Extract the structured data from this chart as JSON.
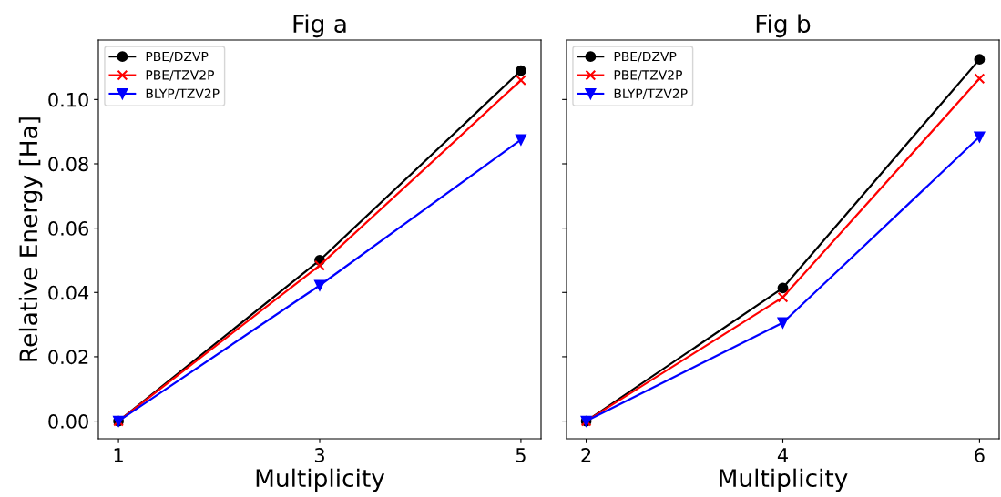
{
  "chart_data": [
    {
      "type": "line",
      "title": "Fig a",
      "xlabel": "Multiplicity",
      "ylabel": "Relative Energy [Ha]",
      "x": [
        1,
        3,
        5
      ],
      "xlim": [
        0.8,
        5.2
      ],
      "xticks": [
        1,
        3,
        5
      ],
      "ylim": [
        -0.0055,
        0.1185
      ],
      "yticks": [
        {
          "value": 0,
          "label": "0.00"
        },
        {
          "value": 0.02,
          "label": "0.02"
        },
        {
          "value": 0.04,
          "label": "0.04"
        },
        {
          "value": 0.06,
          "label": "0.06"
        },
        {
          "value": 0.08,
          "label": "0.08"
        },
        {
          "value": 0.1,
          "label": "0.10"
        }
      ],
      "legend": "top left",
      "grid": false,
      "series": [
        {
          "name": "PBE/DZVP",
          "color": "#000000",
          "marker": "circle",
          "values": [
            0,
            0.05,
            0.109
          ]
        },
        {
          "name": "PBE/TZV2P",
          "color": "#ff0000",
          "marker": "cross",
          "values": [
            0,
            0.0484,
            0.106
          ]
        },
        {
          "name": "BLYP/TZV2P",
          "color": "#0000ff",
          "marker": "triangle",
          "values": [
            0,
            0.0422,
            0.0875
          ]
        }
      ]
    },
    {
      "type": "line",
      "title": "Fig b",
      "xlabel": "Multiplicity",
      "x": [
        2,
        4,
        6
      ],
      "xlim": [
        1.8,
        6.2
      ],
      "xticks": [
        2,
        4,
        6
      ],
      "ylim": [
        -0.0055,
        0.1185
      ],
      "yticks": [
        {
          "value": 0,
          "label": null
        },
        {
          "value": 0.02,
          "label": null
        },
        {
          "value": 0.04,
          "label": null
        },
        {
          "value": 0.06,
          "label": null
        },
        {
          "value": 0.08,
          "label": null
        },
        {
          "value": 0.1,
          "label": null
        }
      ],
      "tick_labels": "x",
      "legend": "top left",
      "grid": false,
      "series": [
        {
          "name": "PBE/DZVP",
          "color": "#000000",
          "marker": "circle",
          "values": [
            0,
            0.0414,
            0.1125
          ]
        },
        {
          "name": "PBE/TZV2P",
          "color": "#ff0000",
          "marker": "cross",
          "values": [
            0,
            0.0385,
            0.1065
          ]
        },
        {
          "name": "BLYP/TZV2P",
          "color": "#0000ff",
          "marker": "triangle",
          "values": [
            0,
            0.0306,
            0.0884
          ]
        }
      ]
    }
  ]
}
